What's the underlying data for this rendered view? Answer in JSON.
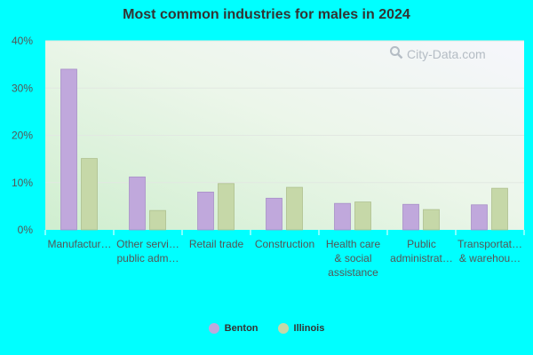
{
  "title": "Most common industries for males in 2024",
  "watermark": "City-Data.com",
  "colors": {
    "background": "#00ffff",
    "benton": "#c0a8dc",
    "illinois": "#c6d8a8"
  },
  "chart_data": {
    "type": "bar",
    "title": "Most common industries for males in 2024",
    "categories": [
      "Manufactur…",
      "Other servi… public adm…",
      "Retail trade",
      "Construction",
      "Health care & social assistance",
      "Public administrat…",
      "Transportat… & warehou…"
    ],
    "category_lines": [
      [
        "Manufactur…"
      ],
      [
        "Other servi…",
        "public adm…"
      ],
      [
        "Retail trade"
      ],
      [
        "Construction"
      ],
      [
        "Health care",
        "& social",
        "assistance"
      ],
      [
        "Public",
        "administrat…"
      ],
      [
        "Transportat…",
        "& warehou…"
      ]
    ],
    "series": [
      {
        "name": "Benton",
        "values": [
          34.0,
          11.2,
          8.0,
          6.7,
          5.6,
          5.4,
          5.3
        ]
      },
      {
        "name": "Illinois",
        "values": [
          15.1,
          4.1,
          9.8,
          9.0,
          5.9,
          4.3,
          8.8
        ]
      }
    ],
    "ylim": [
      0,
      40
    ],
    "yticks": [
      "0%",
      "10%",
      "20%",
      "30%",
      "40%"
    ],
    "ytick_values": [
      0,
      10,
      20,
      30,
      40
    ],
    "grid": true,
    "legend_position": "bottom-center",
    "xlabel": "",
    "ylabel": ""
  }
}
